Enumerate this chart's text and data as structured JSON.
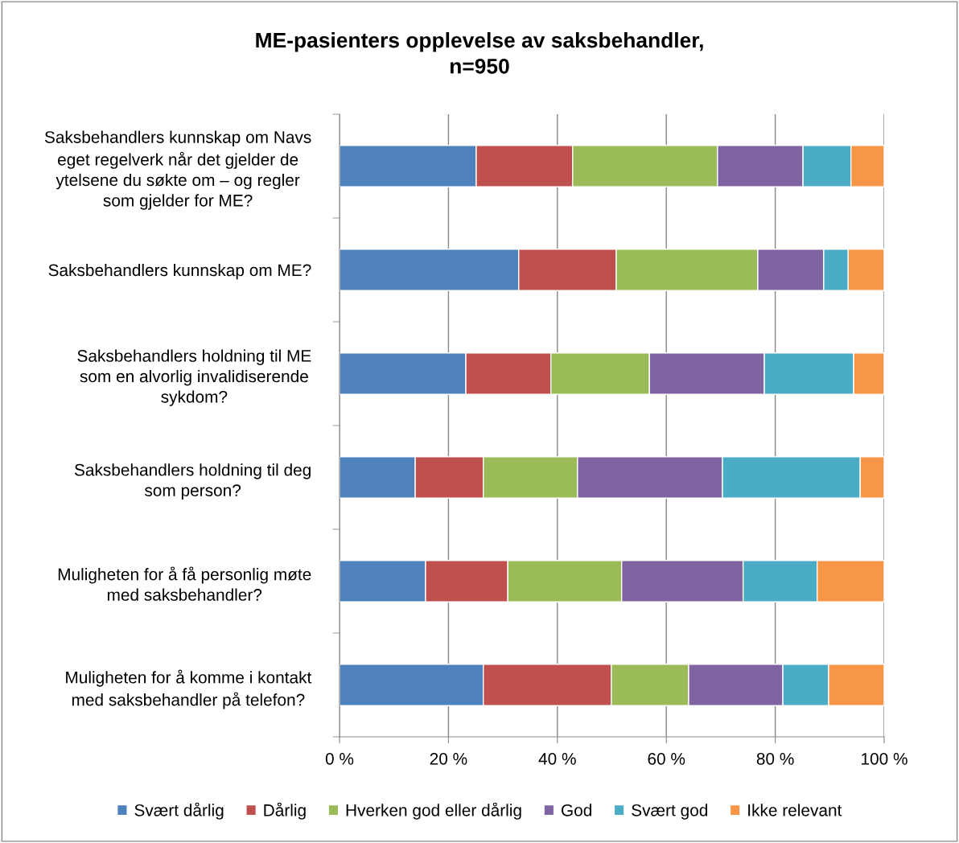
{
  "chart_data": {
    "type": "bar",
    "orientation": "horizontal",
    "stacked": true,
    "title": "ME-pasienters opplevelse av saksbehandler,\nn=950",
    "categories": [
      "Saksbehandlers kunnskap om Navs\neget regelverk når det gjelder de\nytelsene du søkte om – og regler\nsom gjelder for ME?",
      "Saksbehandlers kunnskap om ME?",
      "Saksbehandlers holdning til ME\nsom en alvorlig invalidiserende\nsykdom?",
      "Saksbehandlers holdning til deg\nsom person?",
      "Muligheten for å få personlig møte\nmed saksbehandler?",
      "Muligheten for å komme i kontakt\nmed saksbehandler på telefon?"
    ],
    "series": [
      {
        "name": "Svært dårlig",
        "color": "#4f81bd",
        "values": [
          25.1,
          32.9,
          23.2,
          13.9,
          15.8,
          26.4
        ]
      },
      {
        "name": "Dårlig",
        "color": "#c0504d",
        "values": [
          17.7,
          17.9,
          15.6,
          12.5,
          15.1,
          23.5
        ]
      },
      {
        "name": "Hverken god eller dårlig",
        "color": "#9bbb59",
        "values": [
          26.6,
          26.0,
          18.1,
          17.3,
          20.9,
          14.2
        ]
      },
      {
        "name": "God",
        "color": "#8064a2",
        "values": [
          15.7,
          12.1,
          21.1,
          26.6,
          22.3,
          17.3
        ]
      },
      {
        "name": "Svært god",
        "color": "#4bacc6",
        "values": [
          8.8,
          4.5,
          16.4,
          25.3,
          13.6,
          8.4
        ]
      },
      {
        "name": "Ikke relevant",
        "color": "#f79646",
        "values": [
          6.1,
          6.6,
          5.6,
          4.4,
          12.3,
          10.2
        ]
      }
    ],
    "xlim": [
      0,
      100
    ],
    "xticks": [
      {
        "value": 0,
        "label": "0 %"
      },
      {
        "value": 20,
        "label": "20 %"
      },
      {
        "value": 40,
        "label": "40 %"
      },
      {
        "value": 60,
        "label": "60 %"
      },
      {
        "value": 80,
        "label": "80 %"
      },
      {
        "value": 100,
        "label": "100 %"
      }
    ],
    "grid": "x",
    "legend": "bottom"
  }
}
